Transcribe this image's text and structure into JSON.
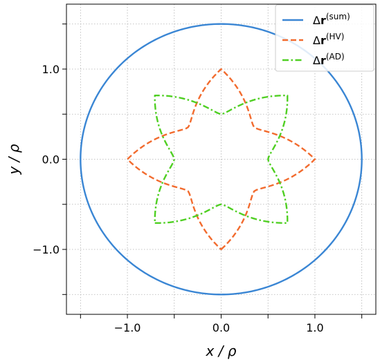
{
  "chart_data": {
    "type": "line",
    "xlabel": "x / ρ",
    "ylabel": "y / ρ",
    "xlim": [
      -1.65,
      1.65
    ],
    "ylim": [
      -1.72,
      1.72
    ],
    "xticks": [
      -1.5,
      -1.0,
      -0.5,
      0.0,
      0.5,
      1.0,
      1.5
    ],
    "yticks": [
      -1.5,
      -1.0,
      -0.5,
      0.0,
      0.5,
      1.0,
      1.5
    ],
    "xtick_labels": [
      "",
      "−1.0",
      "",
      "0.0",
      "",
      "1.0",
      ""
    ],
    "ytick_labels": [
      "",
      "−1.0",
      "",
      "0.0",
      "",
      "1.0",
      ""
    ],
    "grid": true,
    "legend_position": "top-right",
    "series": [
      {
        "name": "Δr(sum)",
        "legend_main": "Δ",
        "legend_bold": "r",
        "legend_sup": "(sum)",
        "color": "#3a86d4",
        "style": "solid",
        "curve": "circle",
        "radius": 1.5
      },
      {
        "name": "Δr(HV)",
        "legend_main": "Δ",
        "legend_bold": "r",
        "legend_sup": "(HV)",
        "color": "#f26b2e",
        "style": "dashed",
        "curve": "astroid_star",
        "outer_radius": 1.0,
        "inner_radius": 0.5,
        "tips": [
          [
            1.0,
            0.0
          ],
          [
            0.0,
            1.0
          ],
          [
            -1.0,
            0.0
          ],
          [
            0.0,
            -1.0
          ]
        ]
      },
      {
        "name": "Δr(AD)",
        "legend_main": "Δ",
        "legend_bold": "r",
        "legend_sup": "(AD)",
        "color": "#4fcf22",
        "style": "dashdot",
        "curve": "astroid_star",
        "outer_radius": 1.0,
        "inner_radius": 0.5,
        "tips": [
          [
            0.707,
            0.707
          ],
          [
            -0.707,
            0.707
          ],
          [
            -0.707,
            -0.707
          ],
          [
            0.707,
            -0.707
          ]
        ]
      }
    ]
  }
}
